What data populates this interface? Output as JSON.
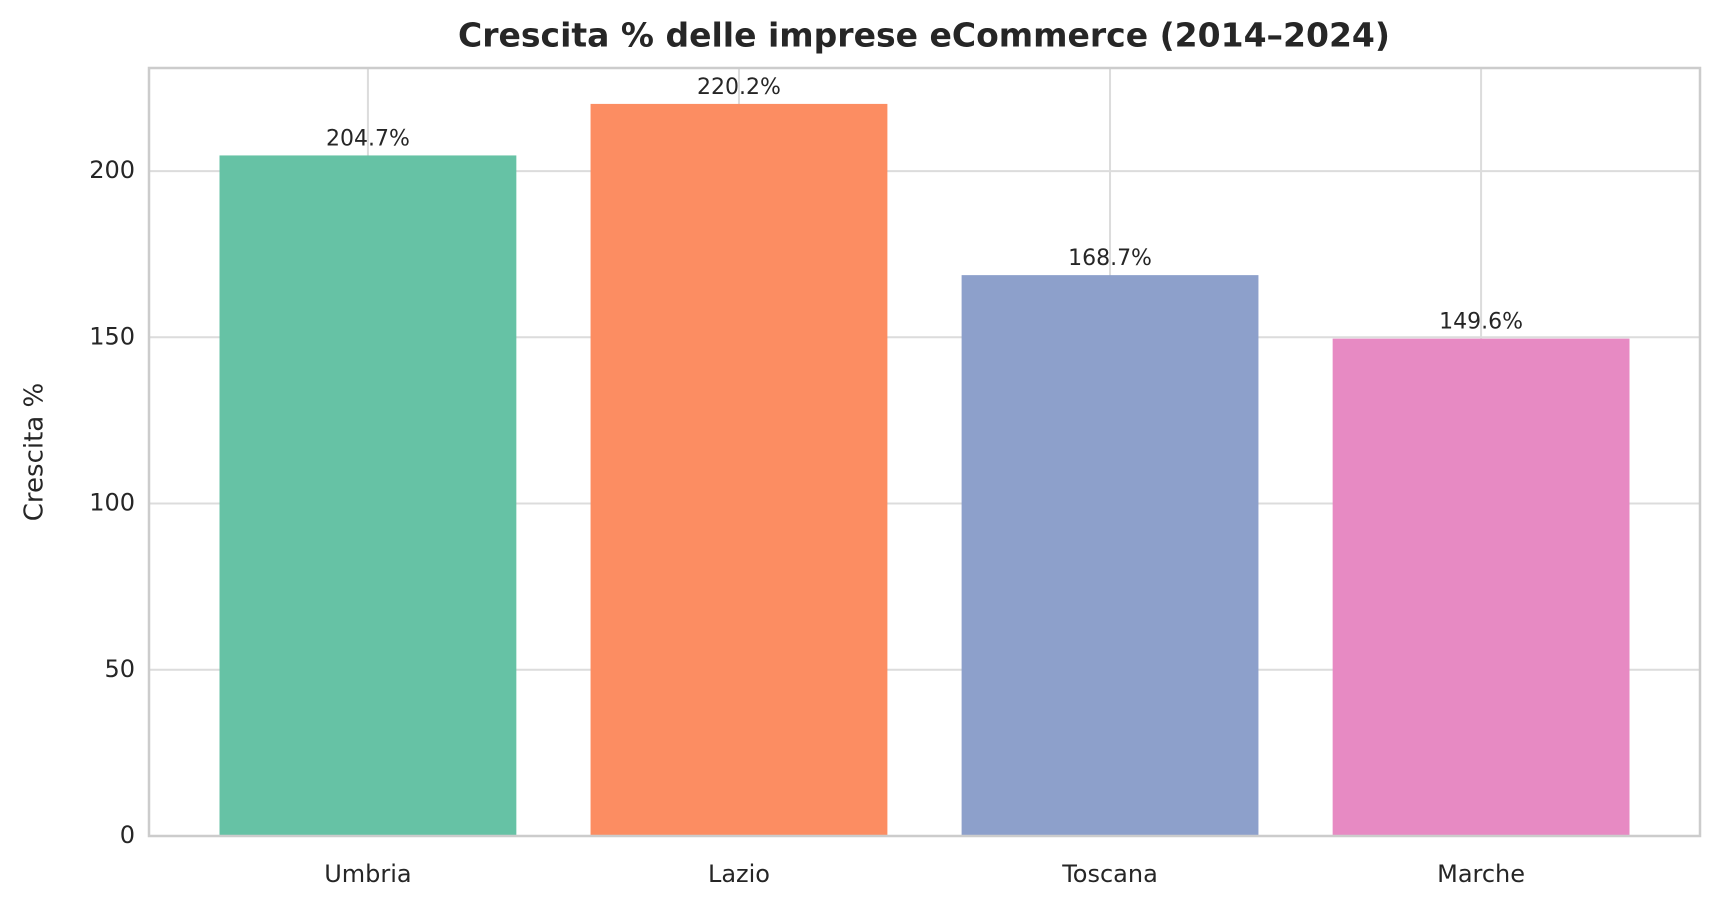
{
  "chart_data": {
    "type": "bar",
    "title": "Crescita % delle imprese eCommerce (2014–2024)",
    "y_label": "Crescita %",
    "categories": [
      "Umbria",
      "Lazio",
      "Toscana",
      "Marche"
    ],
    "values": [
      204.7,
      220.2,
      168.7,
      149.6
    ],
    "value_labels": [
      "204.7%",
      "220.2%",
      "168.7%",
      "149.6%"
    ],
    "colors": [
      "#66c2a5",
      "#fc8d62",
      "#8da0cb",
      "#e78ac3"
    ],
    "ylim": [
      0,
      231
    ],
    "yticks": [
      0,
      50,
      100,
      150,
      200
    ],
    "grid": true
  }
}
